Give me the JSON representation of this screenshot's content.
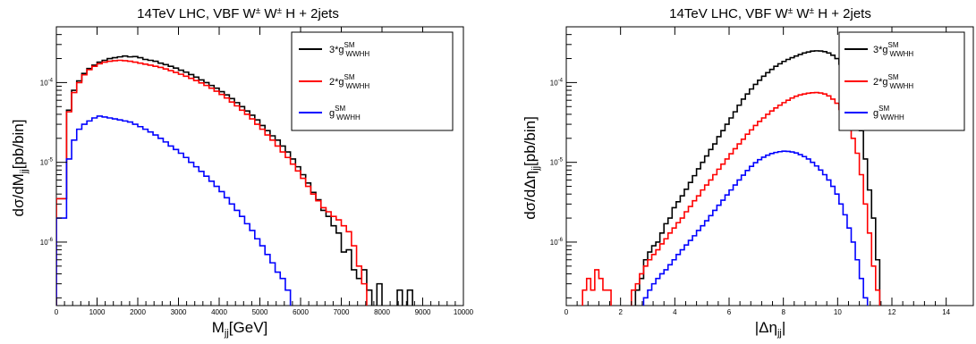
{
  "chart_data": [
    {
      "type": "line",
      "title_main": "14TeV LHC, VBF W",
      "title_sup": "±",
      "title_main2": " W",
      "title_sup2": "±",
      "title_rest": " H + 2jets",
      "xlabel_main": "M",
      "xlabel_sub": "jj",
      "xlabel_rest": "[GeV]",
      "ylabel_main": "dσ/dM",
      "ylabel_sub": "jj",
      "ylabel_rest": "[pb/bin]",
      "log_y": true,
      "xlim": [
        0,
        10000
      ],
      "ylim": [
        1.6e-07,
        0.0005
      ],
      "x_ticks": [
        0,
        1000,
        2000,
        3000,
        4000,
        5000,
        6000,
        7000,
        8000,
        9000,
        10000
      ],
      "y_ticks": [
        {
          "value": 1e-06,
          "base": "10",
          "exp": "-6"
        },
        {
          "value": 1e-05,
          "base": "10",
          "exp": "-5"
        },
        {
          "value": 0.0001,
          "base": "10",
          "exp": "-4"
        }
      ],
      "bin_width": 125,
      "legend_position": "top-right",
      "series": [
        {
          "label_main": "3*g",
          "label_sup": "SM",
          "label_sub": "WWHH",
          "color": "#000000",
          "values": [
            3.5e-06,
            3.5e-06,
            4.5e-05,
            8e-05,
            0.000105,
            0.00013,
            0.00015,
            0.000165,
            0.00018,
            0.00019,
            0.0002,
            0.000205,
            0.00021,
            0.000215,
            0.00021,
            0.000212,
            0.000205,
            0.000195,
            0.00019,
            0.000185,
            0.000175,
            0.000168,
            0.00016,
            0.000152,
            0.000143,
            0.000135,
            0.000126,
            0.000117,
            0.000108,
            0.0001,
            9.2e-05,
            8.5e-05,
            7.7e-05,
            7e-05,
            6.3e-05,
            5.6e-05,
            5e-05,
            4.4e-05,
            3.9e-05,
            3.4e-05,
            2.9e-05,
            2.5e-05,
            2.15e-05,
            1.9e-05,
            1.6e-05,
            1.35e-05,
            1.1e-05,
            8.8e-06,
            7e-06,
            5.5e-06,
            4.2e-06,
            3.4e-06,
            2.5e-06,
            2.1e-06,
            1.6e-06,
            1.3e-06,
            7.5e-07,
            8e-07,
            4.5e-07,
            3.5e-07,
            4.5e-07,
            2.5e-07,
            1.5e-07,
            3e-07,
            1.5e-07,
            1.5e-07,
            1.5e-07,
            2.5e-07,
            1.5e-07,
            2.5e-07,
            1.5e-07,
            1.5e-07,
            1.5e-07,
            1.5e-07,
            1.5e-07,
            1.5e-07,
            1.5e-07,
            1.5e-07,
            1.5e-07,
            1.5e-07
          ]
        },
        {
          "label_main": "2*g",
          "label_sup": "SM",
          "label_sub": "WWHH",
          "color": "#ff0000",
          "values": [
            3.5e-06,
            3.5e-06,
            4.3e-05,
            7.5e-05,
            0.0001,
            0.000125,
            0.000145,
            0.00016,
            0.000172,
            0.00018,
            0.000185,
            0.000188,
            0.00019,
            0.000188,
            0.000185,
            0.00018,
            0.000175,
            0.00017,
            0.000165,
            0.00016,
            0.000155,
            0.000148,
            0.000141,
            0.000134,
            0.000127,
            0.00012,
            0.000113,
            0.000106,
            9.9e-05,
            9.2e-05,
            8.5e-05,
            7.8e-05,
            7.1e-05,
            6.4e-05,
            5.7e-05,
            5.1e-05,
            4.5e-05,
            4e-05,
            3.5e-05,
            3e-05,
            2.6e-05,
            2.2e-05,
            1.9e-05,
            1.6e-05,
            1.35e-05,
            1.15e-05,
            9.5e-06,
            7.8e-06,
            6.3e-06,
            5e-06,
            4e-06,
            3.3e-06,
            2.7e-06,
            2.4e-06,
            2.1e-06,
            1.9e-06,
            1.6e-06,
            1.35e-06,
            9e-07,
            5e-07,
            3e-07,
            1.5e-07,
            1.5e-07,
            1.5e-07,
            1.5e-07,
            1.5e-07,
            1.5e-07,
            1.5e-07,
            1.5e-07,
            1.5e-07,
            1.5e-07,
            1.5e-07,
            1.5e-07,
            1.5e-07,
            1.5e-07,
            1.5e-07,
            1.5e-07,
            1.5e-07,
            1.5e-07,
            1.5e-07
          ]
        },
        {
          "label_main": "g",
          "label_sup": "SM",
          "label_sub": "WWHH",
          "color": "#0000ff",
          "values": [
            2e-06,
            2e-06,
            1.1e-05,
            1.9e-05,
            2.6e-05,
            3e-05,
            3.3e-05,
            3.6e-05,
            3.8e-05,
            3.7e-05,
            3.6e-05,
            3.5e-05,
            3.4e-05,
            3.3e-05,
            3.2e-05,
            3e-05,
            2.8e-05,
            2.6e-05,
            2.4e-05,
            2.2e-05,
            2e-05,
            1.8e-05,
            1.6e-05,
            1.45e-05,
            1.3e-05,
            1.15e-05,
            1e-05,
            8.8e-06,
            7.7e-06,
            6.7e-06,
            5.8e-06,
            5e-06,
            4.3e-06,
            3.6e-06,
            3e-06,
            2.5e-06,
            2.1e-06,
            1.7e-06,
            1.4e-06,
            1.1e-06,
            9e-07,
            7e-07,
            5.5e-07,
            4.2e-07,
            3.5e-07,
            2.5e-07,
            1.5e-07,
            1.5e-07,
            1.5e-07,
            1.5e-07,
            1.5e-07,
            1.5e-07,
            1.5e-07,
            1.5e-07,
            1.5e-07,
            1.5e-07,
            1.5e-07,
            1.5e-07,
            1.5e-07,
            1.5e-07,
            1.5e-07,
            1.5e-07,
            1.5e-07,
            1.5e-07,
            1.5e-07,
            1.5e-07,
            1.5e-07,
            1.5e-07,
            1.5e-07,
            1.5e-07,
            1.5e-07,
            1.5e-07,
            1.5e-07,
            1.5e-07,
            1.5e-07,
            1.5e-07,
            1.5e-07,
            1.5e-07,
            1.5e-07,
            1.5e-07
          ]
        }
      ]
    },
    {
      "type": "line",
      "title_main": "14TeV LHC, VBF W",
      "title_sup": "±",
      "title_main2": " W",
      "title_sup2": "±",
      "title_rest": " H + 2jets",
      "xlabel_main": "|Δη",
      "xlabel_sub": "jj",
      "xlabel_rest": "|",
      "ylabel_main": "dσ/dΔη",
      "ylabel_sub": "jj",
      "ylabel_rest": "[pb/bin]",
      "log_y": true,
      "xlim": [
        0,
        15
      ],
      "ylim": [
        1.6e-07,
        0.0005
      ],
      "x_ticks": [
        0,
        2,
        4,
        6,
        8,
        10,
        12,
        14
      ],
      "y_ticks": [
        {
          "value": 1e-06,
          "base": "10",
          "exp": "-6"
        },
        {
          "value": 1e-05,
          "base": "10",
          "exp": "-5"
        },
        {
          "value": 0.0001,
          "base": "10",
          "exp": "-4"
        }
      ],
      "bin_width": 0.15,
      "legend_position": "top-right",
      "series": [
        {
          "label_main": "3*g",
          "label_sup": "SM",
          "label_sub": "WWHH",
          "color": "#000000",
          "values": [
            1.5e-07,
            1.5e-07,
            1.5e-07,
            1.5e-07,
            1.5e-07,
            1.5e-07,
            1.5e-07,
            1.5e-07,
            1.5e-07,
            1.5e-07,
            1.5e-07,
            1.5e-07,
            1.5e-07,
            1.5e-07,
            1.5e-07,
            1.5e-07,
            1.5e-07,
            2.5e-07,
            3.5e-07,
            6e-07,
            7.5e-07,
            9e-07,
            1e-06,
            1.3e-06,
            1.7e-06,
            2e-06,
            2.7e-06,
            3.2e-06,
            3.8e-06,
            4.6e-06,
            5.6e-06,
            6.8e-06,
            8.3e-06,
            1e-05,
            1.2e-05,
            1.45e-05,
            1.7e-05,
            2.1e-05,
            2.5e-05,
            3e-05,
            3.6e-05,
            4.3e-05,
            5.2e-05,
            6.2e-05,
            7.2e-05,
            8.3e-05,
            9.5e-05,
            0.000107,
            0.00012,
            0.000133,
            0.000146,
            0.00016,
            0.000172,
            0.000184,
            0.000195,
            0.000205,
            0.000215,
            0.000225,
            0.000235,
            0.000242,
            0.000248,
            0.00025,
            0.000249,
            0.000244,
            0.000235,
            0.00022,
            0.0002,
            0.00017,
            0.00014,
            0.00011,
            8e-05,
            5e-05,
            2.5e-05,
            1.1e-05,
            4.5e-06,
            2e-06,
            6e-07,
            1.5e-07,
            1.5e-07,
            1.5e-07,
            1.5e-07,
            1.5e-07,
            1.5e-07,
            1.5e-07,
            1.5e-07,
            1.5e-07,
            1.5e-07,
            1.5e-07,
            1.5e-07,
            1.5e-07,
            1.5e-07,
            1.5e-07,
            1.5e-07,
            1.5e-07,
            1.5e-07,
            1.5e-07,
            1.5e-07,
            1.5e-07,
            1.5e-07,
            1.5e-07
          ]
        },
        {
          "label_main": "2*g",
          "label_sup": "SM",
          "label_sub": "WWHH",
          "color": "#ff0000",
          "values": [
            1.5e-07,
            1.5e-07,
            1.5e-07,
            1.5e-07,
            2.5e-07,
            3.5e-07,
            2.5e-07,
            4.5e-07,
            3.5e-07,
            2.5e-07,
            2.5e-07,
            1.5e-07,
            1.5e-07,
            1.5e-07,
            1.5e-07,
            1.5e-07,
            2.5e-07,
            3e-07,
            4e-07,
            5e-07,
            6e-07,
            7e-07,
            8e-07,
            9.5e-07,
            1.1e-06,
            1.3e-06,
            1.5e-06,
            1.75e-06,
            2e-06,
            2.4e-06,
            2.8e-06,
            3.3e-06,
            3.8e-06,
            4.5e-06,
            5.2e-06,
            6e-06,
            7e-06,
            8.2e-06,
            9.5e-06,
            1.1e-05,
            1.28e-05,
            1.48e-05,
            1.7e-05,
            1.95e-05,
            2.25e-05,
            2.55e-05,
            2.9e-05,
            3.25e-05,
            3.6e-05,
            4e-05,
            4.4e-05,
            4.8e-05,
            5.2e-05,
            5.6e-05,
            6e-05,
            6.4e-05,
            6.75e-05,
            7e-05,
            7.2e-05,
            7.35e-05,
            7.45e-05,
            7.5e-05,
            7.4e-05,
            7.2e-05,
            6.8e-05,
            6.2e-05,
            5.5e-05,
            4.6e-05,
            3.7e-05,
            2.8e-05,
            2e-05,
            1.3e-05,
            7e-06,
            3e-06,
            1.3e-06,
            5e-07,
            2.5e-07,
            1.5e-07,
            1.5e-07,
            1.5e-07,
            1.5e-07,
            1.5e-07,
            1.5e-07,
            1.5e-07,
            1.5e-07,
            1.5e-07,
            1.5e-07,
            1.5e-07,
            1.5e-07,
            1.5e-07,
            1.5e-07,
            1.5e-07,
            1.5e-07,
            1.5e-07,
            1.5e-07,
            1.5e-07,
            1.5e-07,
            1.5e-07,
            1.5e-07,
            1.5e-07
          ]
        },
        {
          "label_main": "g",
          "label_sup": "SM",
          "label_sub": "WWHH",
          "color": "#0000ff",
          "values": [
            1.5e-07,
            1.5e-07,
            1.5e-07,
            1.5e-07,
            1.5e-07,
            1.5e-07,
            1.5e-07,
            1.5e-07,
            1.5e-07,
            1.5e-07,
            1.5e-07,
            1.5e-07,
            1.5e-07,
            1.5e-07,
            1.5e-07,
            1.5e-07,
            1.5e-07,
            1.5e-07,
            1.5e-07,
            2e-07,
            2.5e-07,
            3e-07,
            3.5e-07,
            4e-07,
            4.5e-07,
            5.2e-07,
            6e-07,
            7e-07,
            8e-07,
            9.2e-07,
            1.05e-06,
            1.2e-06,
            1.4e-06,
            1.6e-06,
            1.85e-06,
            2.15e-06,
            2.5e-06,
            2.9e-06,
            3.35e-06,
            3.9e-06,
            4.5e-06,
            5.2e-06,
            6e-06,
            6.9e-06,
            7.9e-06,
            8.9e-06,
            9.9e-06,
            1.08e-05,
            1.16e-05,
            1.23e-05,
            1.29e-05,
            1.33e-05,
            1.36e-05,
            1.38e-05,
            1.37e-05,
            1.35e-05,
            1.31e-05,
            1.25e-05,
            1.18e-05,
            1.1e-05,
            1e-05,
            9e-06,
            8e-06,
            7e-06,
            6e-06,
            5e-06,
            4e-06,
            3e-06,
            2.2e-06,
            1.5e-06,
            1e-06,
            6e-07,
            3.5e-07,
            2e-07,
            1.5e-07,
            1.5e-07,
            1.5e-07,
            1.5e-07,
            1.5e-07,
            1.5e-07,
            1.5e-07,
            1.5e-07,
            1.5e-07,
            1.5e-07,
            1.5e-07,
            1.5e-07,
            1.5e-07,
            1.5e-07,
            1.5e-07,
            1.5e-07,
            1.5e-07,
            1.5e-07,
            1.5e-07,
            1.5e-07,
            1.5e-07,
            1.5e-07,
            1.5e-07,
            1.5e-07,
            1.5e-07,
            1.5e-07
          ]
        }
      ]
    }
  ]
}
